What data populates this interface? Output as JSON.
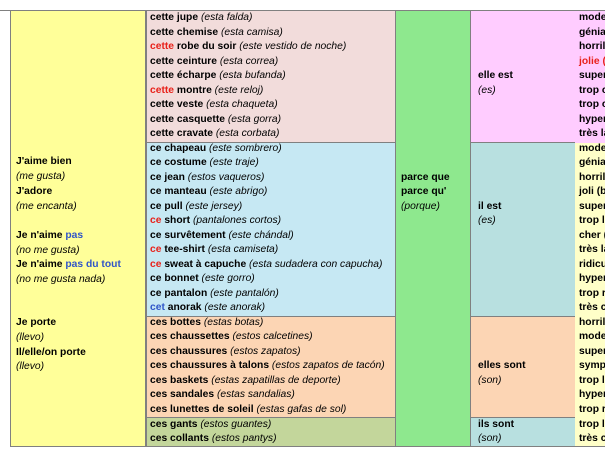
{
  "col1": {
    "opinions": [
      {
        "fr": "J'aime bien",
        "es": "(me gusta)"
      },
      {
        "fr": "J'adore",
        "es": "(me encanta)"
      },
      {
        "fr_a": "Je n'aime ",
        "fr_b": "pas",
        "es": "(no me gusta)"
      },
      {
        "fr_a": "Je n'aime ",
        "fr_b": "pas du tout",
        "es": "(no me gusta nada)"
      }
    ],
    "wear": [
      {
        "fr": "Je porte",
        "es": "(llevo)"
      },
      {
        "fr": "Il/elle/on porte",
        "es": "(llevo)"
      }
    ]
  },
  "feminine": [
    {
      "det": "cette",
      "noun": " jupe",
      "es": " (esta falda)",
      "red": false
    },
    {
      "det": "cette",
      "noun": " chemise",
      "es": " (esta camisa)",
      "red": false
    },
    {
      "det": "cette",
      "noun": " robe du soir",
      "es": " (este vestido de noche)",
      "red": true
    },
    {
      "det": "cette",
      "noun": " ceinture",
      "es": " (esta correa)",
      "red": false
    },
    {
      "det": "cette",
      "noun": " écharpe",
      "es": " (esta bufanda)",
      "red": false
    },
    {
      "det": "cette",
      "noun": " montre",
      "es": " (este reloj)",
      "red": true
    },
    {
      "det": "cette",
      "noun": " veste",
      "es": " (esta chaqueta)",
      "red": false
    },
    {
      "det": "cette",
      "noun": " casquette",
      "es": " (esta gorra)",
      "red": false
    },
    {
      "det": "cette",
      "noun": " cravate",
      "es": " (esta corbata)",
      "red": false
    }
  ],
  "masculine": [
    {
      "det": "ce",
      "noun": " chapeau",
      "es": " (este sombrero)",
      "style": ""
    },
    {
      "det": "ce",
      "noun": " costume",
      "es": " (este traje)",
      "style": ""
    },
    {
      "det": "ce",
      "noun": " jean",
      "es": " (estos vaqueros)",
      "style": ""
    },
    {
      "det": "ce",
      "noun": " manteau",
      "es": " (este abrigo)",
      "style": ""
    },
    {
      "det": "ce",
      "noun": " pull",
      "es": " (este jersey)",
      "style": ""
    },
    {
      "det": "ce",
      "noun": " short",
      "es": " (pantalones cortos)",
      "style": "red"
    },
    {
      "det": "ce",
      "noun": " survêtement",
      "es": " (este chándal)",
      "style": ""
    },
    {
      "det": "ce",
      "noun": " tee-shirt",
      "es": " (esta camiseta)",
      "style": "red"
    },
    {
      "det": "ce",
      "noun": " sweat à capuche",
      "es": " (esta sudadera con capucha)",
      "style": "red"
    },
    {
      "det": "ce",
      "noun": " bonnet",
      "es": " (este gorro)",
      "style": ""
    },
    {
      "det": "ce",
      "noun": " pantalon",
      "es": " (este pantalón)",
      "style": ""
    },
    {
      "det": "cet",
      "noun": " anorak",
      "es": " (este anorak)",
      "style": "blue"
    }
  ],
  "plural_f": [
    {
      "det": "ces",
      "noun": " bottes",
      "es": " (estas botas)"
    },
    {
      "det": "ces",
      "noun": " chaussettes",
      "es": " (estos calcetines)"
    },
    {
      "det": "ces",
      "noun": " chaussures",
      "es": " (estos zapatos)"
    },
    {
      "det": "ces",
      "noun": " chaussures à talons",
      "es": " (estos zapatos de tacón)"
    },
    {
      "det": "ces",
      "noun": " baskets",
      "es": " (estas zapatillas de deporte)"
    },
    {
      "det": "ces",
      "noun": " sandales",
      "es": " (estas sandalias)"
    },
    {
      "det": "ces",
      "noun": " lunettes de soleil",
      "es": " (estas gafas de sol)"
    }
  ],
  "plural_m": [
    {
      "det": "ces",
      "noun": " gants",
      "es": " (estos guantes)"
    },
    {
      "det": "ces",
      "noun": " collants",
      "es": " (estos pantys)"
    }
  ],
  "because": {
    "l1": "parce que",
    "l2": "parce qu'",
    "l3": "(porque)"
  },
  "verbs": {
    "elle_est": "elle est",
    "elle_es": "(es)",
    "il_est": "il est",
    "il_es": "(es)",
    "elles_sont": "elles sont",
    "elles_es": "(son)",
    "ils_sont": "ils sont",
    "ils_es": "(son)"
  },
  "adjectives": {
    "fem": [
      "mode",
      "génia",
      "horril",
      "jolie (",
      "super",
      "trop c",
      "trop c",
      "hyper",
      "très la"
    ],
    "masc": [
      "mode",
      "génia",
      "horril",
      "joli (b",
      "super",
      "trop l",
      "cher (",
      "très la",
      "ridicu",
      "hyper",
      "trop r",
      "très c"
    ],
    "plf": [
      "horril",
      "mode",
      "super",
      "symp",
      "trop l",
      "hyper",
      "trop r"
    ],
    "plm": [
      "trop l",
      "très c"
    ]
  },
  "colors": {
    "yellow": "#ffff99",
    "pink": "#f2dcdb",
    "blue": "#c6e8f3",
    "orange": "#fcd5b4",
    "olive": "#c3d69b",
    "green": "#8ee88e",
    "magenta": "#ffccff",
    "teal": "#b8e0e0",
    "cream": "#ffffc8"
  }
}
